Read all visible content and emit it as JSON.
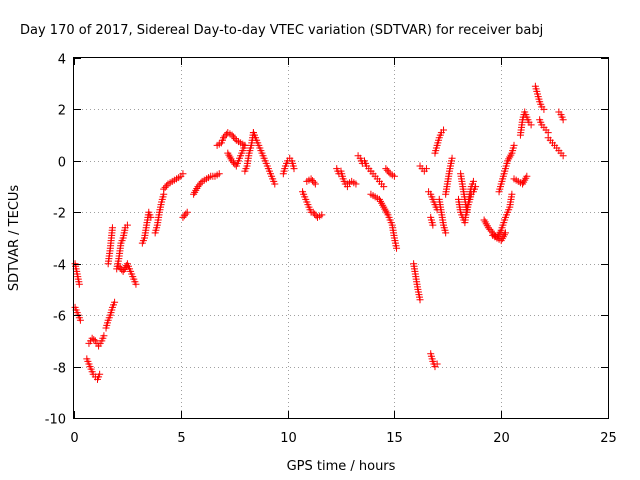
{
  "chart_data": {
    "type": "scatter",
    "title": "Day 170 of 2017, Sidereal Day-to-day VTEC variation (SDTVAR) for receiver babj",
    "xlabel": "GPS time / hours",
    "ylabel": "SDTVAR / TECUs",
    "xlim": [
      0,
      25
    ],
    "ylim": [
      -10,
      4
    ],
    "xticks": [
      0,
      5,
      10,
      15,
      20,
      25
    ],
    "yticks": [
      -10,
      -8,
      -6,
      -4,
      -2,
      0,
      2,
      4
    ],
    "xtick_labels": [
      "0",
      "5",
      "10",
      "15",
      "20",
      "25"
    ],
    "ytick_labels": [
      "-10",
      "-8",
      "-6",
      "-4",
      "-2",
      "0",
      "2",
      "4"
    ],
    "grid": true,
    "marker": "+",
    "marker_color": "#ff0000",
    "segments": [
      {
        "x": [
          0.05,
          0.15,
          0.25
        ],
        "y": [
          -4.0,
          -4.4,
          -4.8
        ]
      },
      {
        "x": [
          0.05,
          0.15,
          0.3
        ],
        "y": [
          -5.7,
          -5.9,
          -6.2
        ]
      },
      {
        "x": [
          0.6,
          0.7,
          0.8,
          0.9,
          1.0,
          1.1,
          1.2
        ],
        "y": [
          -7.7,
          -7.9,
          -8.1,
          -8.3,
          -8.4,
          -8.5,
          -8.3
        ]
      },
      {
        "x": [
          0.7,
          0.85,
          1.0,
          1.15,
          1.3,
          1.4
        ],
        "y": [
          -7.1,
          -6.9,
          -7.0,
          -7.2,
          -7.0,
          -6.8
        ]
      },
      {
        "x": [
          1.5,
          1.6,
          1.7,
          1.8,
          1.9
        ],
        "y": [
          -6.5,
          -6.2,
          -6.0,
          -5.7,
          -5.5
        ]
      },
      {
        "x": [
          1.6,
          1.7,
          1.75,
          1.8
        ],
        "y": [
          -4.0,
          -3.4,
          -3.0,
          -2.6
        ]
      },
      {
        "x": [
          2.0,
          2.1,
          2.2,
          2.3,
          2.4,
          2.5
        ],
        "y": [
          -4.2,
          -3.8,
          -3.2,
          -3.0,
          -2.6,
          -2.5
        ]
      },
      {
        "x": [
          2.1,
          2.3,
          2.5,
          2.7,
          2.9
        ],
        "y": [
          -4.1,
          -4.3,
          -4.0,
          -4.4,
          -4.8
        ]
      },
      {
        "x": [
          3.2,
          3.3,
          3.4,
          3.5,
          3.6
        ],
        "y": [
          -3.2,
          -3.0,
          -2.5,
          -2.0,
          -2.2
        ]
      },
      {
        "x": [
          3.8,
          3.9,
          4.0,
          4.1,
          4.2
        ],
        "y": [
          -2.8,
          -2.5,
          -2.0,
          -1.6,
          -1.3
        ]
      },
      {
        "x": [
          4.2,
          4.4,
          4.6,
          4.8,
          5.0,
          5.1
        ],
        "y": [
          -1.1,
          -0.9,
          -0.8,
          -0.7,
          -0.6,
          -0.5
        ]
      },
      {
        "x": [
          5.1,
          5.3
        ],
        "y": [
          -2.2,
          -2.0
        ]
      },
      {
        "x": [
          5.6,
          5.8,
          6.0,
          6.2,
          6.4,
          6.6,
          6.8
        ],
        "y": [
          -1.3,
          -1.0,
          -0.8,
          -0.7,
          -0.6,
          -0.6,
          -0.5
        ]
      },
      {
        "x": [
          6.7,
          6.9,
          7.0,
          7.2,
          7.4,
          7.6,
          7.8,
          8.0
        ],
        "y": [
          0.6,
          0.7,
          0.9,
          1.1,
          1.0,
          0.8,
          0.7,
          0.6
        ]
      },
      {
        "x": [
          7.2,
          7.4,
          7.6,
          7.8,
          8.0
        ],
        "y": [
          0.3,
          0.0,
          -0.2,
          0.2,
          0.6
        ]
      },
      {
        "x": [
          8.0,
          8.1,
          8.2,
          8.3,
          8.4
        ],
        "y": [
          -0.4,
          -0.2,
          0.3,
          0.6,
          1.1
        ]
      },
      {
        "x": [
          8.4,
          8.6,
          8.8,
          9.0,
          9.2,
          9.4
        ],
        "y": [
          1.1,
          0.7,
          0.3,
          -0.1,
          -0.5,
          -0.9
        ]
      },
      {
        "x": [
          9.8,
          9.9,
          10.0,
          10.1,
          10.2,
          10.3
        ],
        "y": [
          -0.5,
          -0.2,
          0.0,
          0.1,
          0.0,
          -0.3
        ]
      },
      {
        "x": [
          10.7,
          10.8,
          10.9,
          11.0,
          11.1
        ],
        "y": [
          -1.2,
          -1.4,
          -1.6,
          -1.8,
          -2.0
        ]
      },
      {
        "x": [
          10.9,
          11.1,
          11.3
        ],
        "y": [
          -0.8,
          -0.7,
          -0.9
        ]
      },
      {
        "x": [
          11.2,
          11.4,
          11.6
        ],
        "y": [
          -2.0,
          -2.2,
          -2.1
        ]
      },
      {
        "x": [
          12.3,
          12.4,
          12.5,
          12.6,
          12.7,
          12.8
        ],
        "y": [
          -0.3,
          -0.5,
          -0.4,
          -0.7,
          -0.9,
          -1.0
        ]
      },
      {
        "x": [
          12.8,
          13.0,
          13.2
        ],
        "y": [
          -0.9,
          -0.8,
          -0.9
        ]
      },
      {
        "x": [
          13.3,
          13.4,
          13.5,
          13.6,
          13.7,
          13.8,
          13.9
        ],
        "y": [
          0.2,
          0.1,
          -0.1,
          0.0,
          -0.2,
          -0.3,
          -0.4
        ]
      },
      {
        "x": [
          13.9,
          14.0,
          14.1,
          14.2,
          14.3,
          14.4,
          14.5
        ],
        "y": [
          -0.4,
          -0.5,
          -0.6,
          -0.7,
          -0.8,
          -0.9,
          -1.0
        ]
      },
      {
        "x": [
          13.9,
          14.1,
          14.3,
          14.5,
          14.7,
          14.9,
          15.0,
          15.1
        ],
        "y": [
          -1.3,
          -1.4,
          -1.5,
          -1.8,
          -2.1,
          -2.5,
          -3.0,
          -3.4
        ]
      },
      {
        "x": [
          14.6,
          14.8,
          15.0
        ],
        "y": [
          -0.3,
          -0.5,
          -0.6
        ]
      },
      {
        "x": [
          15.9,
          16.0,
          16.1,
          16.2
        ],
        "y": [
          -4.0,
          -4.5,
          -5.0,
          -5.4
        ]
      },
      {
        "x": [
          16.2,
          16.3,
          16.4,
          16.5
        ],
        "y": [
          -0.2,
          -0.3,
          -0.4,
          -0.3
        ]
      },
      {
        "x": [
          16.6,
          16.7,
          16.8,
          16.9,
          17.0
        ],
        "y": [
          -1.2,
          -1.3,
          -1.5,
          -1.7,
          -1.9
        ]
      },
      {
        "x": [
          16.7,
          16.8
        ],
        "y": [
          -2.2,
          -2.5
        ]
      },
      {
        "x": [
          16.7,
          16.8,
          16.9,
          17.0
        ],
        "y": [
          -7.5,
          -7.8,
          -8.0,
          -7.9
        ]
      },
      {
        "x": [
          16.9,
          17.0,
          17.1,
          17.2,
          17.3
        ],
        "y": [
          0.3,
          0.6,
          0.9,
          1.1,
          1.2
        ]
      },
      {
        "x": [
          17.4,
          17.5,
          17.6,
          17.7
        ],
        "y": [
          -1.3,
          -0.8,
          -0.3,
          0.1
        ]
      },
      {
        "x": [
          17.1,
          17.2,
          17.3,
          17.4
        ],
        "y": [
          -1.5,
          -2.0,
          -2.5,
          -2.8
        ]
      },
      {
        "x": [
          18.0,
          18.1,
          18.2,
          18.3,
          18.4,
          18.5,
          18.6,
          18.7,
          18.8
        ],
        "y": [
          -1.5,
          -2.0,
          -2.2,
          -2.4,
          -1.8,
          -1.6,
          -1.3,
          -1.2,
          -1.0
        ]
      },
      {
        "x": [
          18.1,
          18.2,
          18.3,
          18.4,
          18.5,
          18.6,
          18.7
        ],
        "y": [
          -0.5,
          -1.0,
          -1.5,
          -2.0,
          -1.4,
          -1.0,
          -0.8
        ]
      },
      {
        "x": [
          19.2,
          19.4,
          19.6,
          19.8,
          20.0,
          20.2
        ],
        "y": [
          -2.3,
          -2.6,
          -2.8,
          -3.0,
          -3.1,
          -2.8
        ]
      },
      {
        "x": [
          19.6,
          19.8,
          20.0,
          20.2,
          20.4,
          20.5
        ],
        "y": [
          -2.9,
          -3.0,
          -2.7,
          -2.2,
          -1.8,
          -1.3
        ]
      },
      {
        "x": [
          19.9,
          20.1,
          20.3,
          20.5,
          20.6
        ],
        "y": [
          -1.2,
          -0.6,
          0.0,
          0.3,
          0.6
        ]
      },
      {
        "x": [
          20.6,
          20.8,
          21.0,
          21.2
        ],
        "y": [
          -0.7,
          -0.8,
          -0.9,
          -0.6
        ]
      },
      {
        "x": [
          20.9,
          21.0,
          21.1,
          21.2,
          21.3,
          21.4
        ],
        "y": [
          1.0,
          1.6,
          1.9,
          1.7,
          1.5,
          1.4
        ]
      },
      {
        "x": [
          21.6,
          21.7,
          21.8,
          21.9,
          22.0
        ],
        "y": [
          2.9,
          2.6,
          2.3,
          2.1,
          2.0
        ]
      },
      {
        "x": [
          21.8,
          21.9,
          22.0,
          22.1,
          22.2
        ],
        "y": [
          1.6,
          1.4,
          1.3,
          1.2,
          1.1
        ]
      },
      {
        "x": [
          22.2,
          22.3,
          22.4,
          22.5,
          22.6,
          22.7,
          22.8,
          22.9
        ],
        "y": [
          0.9,
          0.8,
          0.7,
          0.6,
          0.5,
          0.4,
          0.3,
          0.2
        ]
      },
      {
        "x": [
          22.7,
          22.8,
          22.9
        ],
        "y": [
          1.9,
          1.8,
          1.6
        ]
      }
    ]
  }
}
